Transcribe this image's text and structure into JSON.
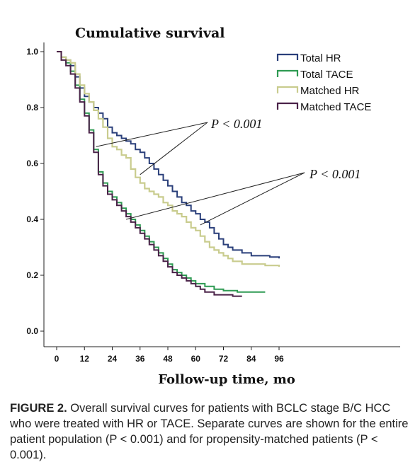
{
  "chart_data": {
    "type": "line",
    "title": "Cumulative survival",
    "xlabel": "Follow-up time,  mo",
    "ylabel": "",
    "xlim": [
      0,
      100
    ],
    "ylim": [
      0,
      1.0
    ],
    "x_ticks": [
      0,
      12,
      24,
      36,
      48,
      60,
      72,
      84,
      96
    ],
    "x_tick_labels": [
      "0",
      "12",
      "24",
      "36",
      "48",
      "60",
      "72",
      "84",
      "96"
    ],
    "y_ticks": [
      0,
      0.2,
      0.4,
      0.6,
      0.8,
      1.0
    ],
    "y_tick_labels": [
      "0.0",
      "0.2",
      "0.4",
      "0.6",
      "0.8",
      "1.0"
    ],
    "legend_position": "top-right",
    "series": [
      {
        "name": "Total HR",
        "color": "#2a3f7a",
        "points": [
          [
            0,
            1.0
          ],
          [
            2,
            0.98
          ],
          [
            4,
            0.97
          ],
          [
            6,
            0.95
          ],
          [
            8,
            0.91
          ],
          [
            10,
            0.87
          ],
          [
            12,
            0.84
          ],
          [
            14,
            0.82
          ],
          [
            16,
            0.8
          ],
          [
            18,
            0.78
          ],
          [
            20,
            0.76
          ],
          [
            22,
            0.73
          ],
          [
            24,
            0.71
          ],
          [
            26,
            0.7
          ],
          [
            28,
            0.69
          ],
          [
            30,
            0.68
          ],
          [
            32,
            0.67
          ],
          [
            34,
            0.65
          ],
          [
            36,
            0.64
          ],
          [
            38,
            0.62
          ],
          [
            40,
            0.6
          ],
          [
            42,
            0.58
          ],
          [
            44,
            0.56
          ],
          [
            46,
            0.54
          ],
          [
            48,
            0.52
          ],
          [
            50,
            0.5
          ],
          [
            52,
            0.48
          ],
          [
            54,
            0.46
          ],
          [
            56,
            0.45
          ],
          [
            58,
            0.43
          ],
          [
            60,
            0.42
          ],
          [
            62,
            0.4
          ],
          [
            64,
            0.39
          ],
          [
            66,
            0.37
          ],
          [
            68,
            0.35
          ],
          [
            70,
            0.33
          ],
          [
            72,
            0.31
          ],
          [
            74,
            0.3
          ],
          [
            76,
            0.29
          ],
          [
            80,
            0.28
          ],
          [
            84,
            0.27
          ],
          [
            88,
            0.27
          ],
          [
            92,
            0.265
          ],
          [
            96,
            0.26
          ]
        ]
      },
      {
        "name": "Total TACE",
        "color": "#2e9a52",
        "points": [
          [
            0,
            1.0
          ],
          [
            2,
            0.98
          ],
          [
            4,
            0.96
          ],
          [
            6,
            0.93
          ],
          [
            8,
            0.88
          ],
          [
            10,
            0.83
          ],
          [
            12,
            0.78
          ],
          [
            14,
            0.72
          ],
          [
            16,
            0.65
          ],
          [
            18,
            0.57
          ],
          [
            20,
            0.53
          ],
          [
            22,
            0.5
          ],
          [
            24,
            0.48
          ],
          [
            26,
            0.46
          ],
          [
            28,
            0.44
          ],
          [
            30,
            0.42
          ],
          [
            32,
            0.4
          ],
          [
            34,
            0.38
          ],
          [
            36,
            0.36
          ],
          [
            38,
            0.34
          ],
          [
            40,
            0.32
          ],
          [
            42,
            0.3
          ],
          [
            44,
            0.28
          ],
          [
            46,
            0.26
          ],
          [
            48,
            0.24
          ],
          [
            50,
            0.22
          ],
          [
            52,
            0.21
          ],
          [
            54,
            0.2
          ],
          [
            56,
            0.19
          ],
          [
            58,
            0.18
          ],
          [
            60,
            0.17
          ],
          [
            64,
            0.16
          ],
          [
            68,
            0.15
          ],
          [
            72,
            0.145
          ],
          [
            78,
            0.14
          ],
          [
            84,
            0.14
          ],
          [
            90,
            0.14
          ]
        ]
      },
      {
        "name": "Matched HR",
        "color": "#c9cc8e",
        "points": [
          [
            0,
            1.0
          ],
          [
            2,
            0.98
          ],
          [
            4,
            0.97
          ],
          [
            6,
            0.96
          ],
          [
            8,
            0.92
          ],
          [
            10,
            0.88
          ],
          [
            12,
            0.85
          ],
          [
            14,
            0.82
          ],
          [
            16,
            0.79
          ],
          [
            18,
            0.76
          ],
          [
            20,
            0.73
          ],
          [
            22,
            0.69
          ],
          [
            24,
            0.66
          ],
          [
            26,
            0.65
          ],
          [
            28,
            0.63
          ],
          [
            30,
            0.62
          ],
          [
            32,
            0.58
          ],
          [
            34,
            0.55
          ],
          [
            36,
            0.53
          ],
          [
            38,
            0.51
          ],
          [
            40,
            0.5
          ],
          [
            42,
            0.49
          ],
          [
            44,
            0.48
          ],
          [
            46,
            0.46
          ],
          [
            48,
            0.45
          ],
          [
            50,
            0.43
          ],
          [
            52,
            0.42
          ],
          [
            54,
            0.41
          ],
          [
            56,
            0.39
          ],
          [
            58,
            0.37
          ],
          [
            60,
            0.36
          ],
          [
            62,
            0.34
          ],
          [
            64,
            0.32
          ],
          [
            66,
            0.3
          ],
          [
            68,
            0.29
          ],
          [
            70,
            0.28
          ],
          [
            72,
            0.27
          ],
          [
            74,
            0.26
          ],
          [
            76,
            0.25
          ],
          [
            80,
            0.24
          ],
          [
            84,
            0.24
          ],
          [
            90,
            0.235
          ],
          [
            96,
            0.23
          ]
        ]
      },
      {
        "name": "Matched TACE",
        "color": "#4a2248",
        "points": [
          [
            0,
            1.0
          ],
          [
            2,
            0.97
          ],
          [
            4,
            0.95
          ],
          [
            6,
            0.92
          ],
          [
            8,
            0.87
          ],
          [
            10,
            0.82
          ],
          [
            12,
            0.77
          ],
          [
            14,
            0.71
          ],
          [
            16,
            0.64
          ],
          [
            18,
            0.56
          ],
          [
            20,
            0.52
          ],
          [
            22,
            0.49
          ],
          [
            24,
            0.47
          ],
          [
            26,
            0.45
          ],
          [
            28,
            0.43
          ],
          [
            30,
            0.41
          ],
          [
            32,
            0.39
          ],
          [
            34,
            0.37
          ],
          [
            36,
            0.35
          ],
          [
            38,
            0.33
          ],
          [
            40,
            0.31
          ],
          [
            42,
            0.29
          ],
          [
            44,
            0.27
          ],
          [
            46,
            0.25
          ],
          [
            48,
            0.23
          ],
          [
            50,
            0.21
          ],
          [
            52,
            0.2
          ],
          [
            54,
            0.19
          ],
          [
            56,
            0.18
          ],
          [
            58,
            0.17
          ],
          [
            60,
            0.16
          ],
          [
            62,
            0.15
          ],
          [
            64,
            0.14
          ],
          [
            68,
            0.13
          ],
          [
            72,
            0.13
          ],
          [
            76,
            0.125
          ],
          [
            80,
            0.125
          ]
        ]
      }
    ],
    "annotations": [
      {
        "text": "P < 0.001",
        "targets": [
          [
            17,
            0.66
          ],
          [
            36,
            0.56
          ]
        ]
      },
      {
        "text": "P < 0.001",
        "targets": [
          [
            30,
            0.4
          ],
          [
            62,
            0.38
          ]
        ]
      }
    ]
  },
  "caption": {
    "label": "FIGURE 2.",
    "text": "Overall survival curves for patients with BCLC stage B/C HCC who were treated with HR or TACE. Separate curves are shown for the entire patient population (P < 0.001) and for propensity-matched patients (P < 0.001)."
  }
}
